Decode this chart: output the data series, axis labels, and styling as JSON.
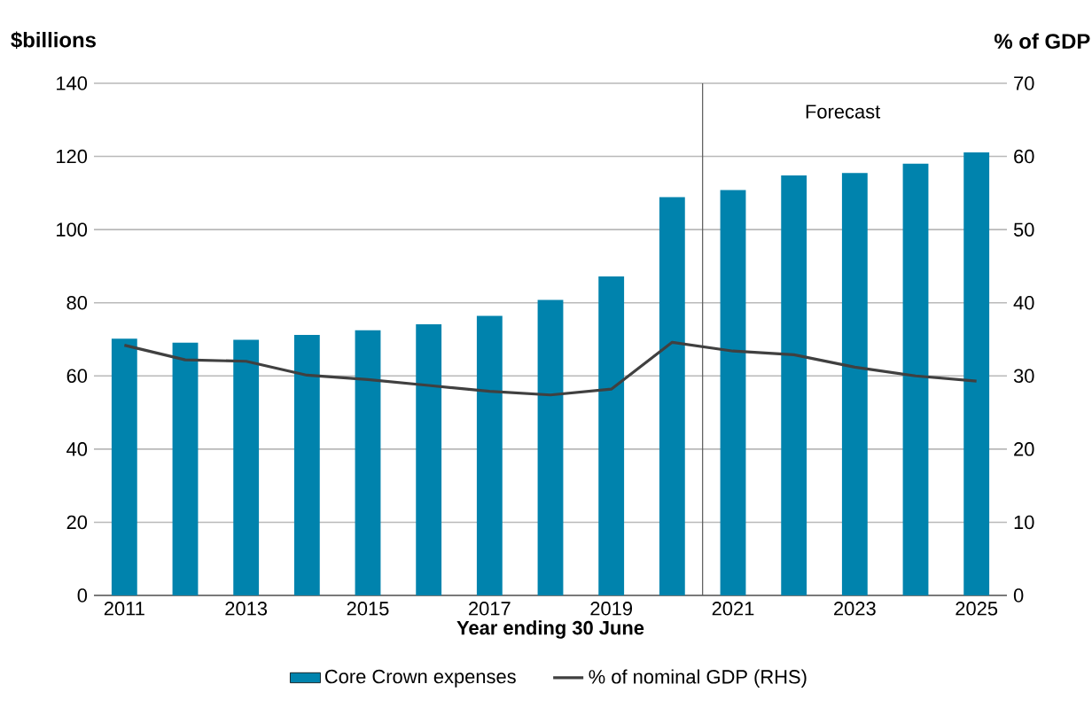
{
  "chart_data": {
    "type": "bar",
    "x": [
      2011,
      2012,
      2013,
      2014,
      2015,
      2016,
      2017,
      2018,
      2019,
      2020,
      2021,
      2022,
      2023,
      2024,
      2025
    ],
    "xlim": [
      2010.5,
      2025.5
    ],
    "xticks": [
      2011,
      2013,
      2015,
      2017,
      2019,
      2021,
      2023,
      2025
    ],
    "ylim": [
      0,
      140
    ],
    "yticks": [
      0,
      20,
      40,
      60,
      80,
      100,
      120,
      140
    ],
    "y2lim": [
      0,
      70
    ],
    "y2ticks": [
      0,
      10,
      20,
      30,
      40,
      50,
      60,
      70
    ],
    "xlabel": "Year ending 30 June",
    "ylabel": "$billions",
    "y2label": "% of GDP",
    "grid": "y",
    "legend": "bottom",
    "series": [
      {
        "name": "Core Crown expenses",
        "color": "#0083ad",
        "values": [
          70.2,
          69.1,
          69.9,
          71.2,
          72.5,
          74.1,
          76.4,
          80.8,
          87.2,
          108.9,
          110.8,
          114.8,
          115.5,
          118.0,
          121.1
        ]
      },
      {
        "name": "% of nominal GDP (RHS)",
        "type": "line",
        "axis": "y2",
        "color": "#404040",
        "values": [
          34.2,
          32.2,
          32.0,
          30.1,
          29.5,
          28.7,
          27.9,
          27.4,
          28.2,
          34.6,
          33.4,
          32.9,
          31.2,
          30.0,
          29.3
        ]
      }
    ],
    "ref_lines": [
      {
        "axis": "x",
        "value": 2020.5,
        "color": "#595959"
      }
    ],
    "annotations": [
      "Forecast"
    ]
  }
}
